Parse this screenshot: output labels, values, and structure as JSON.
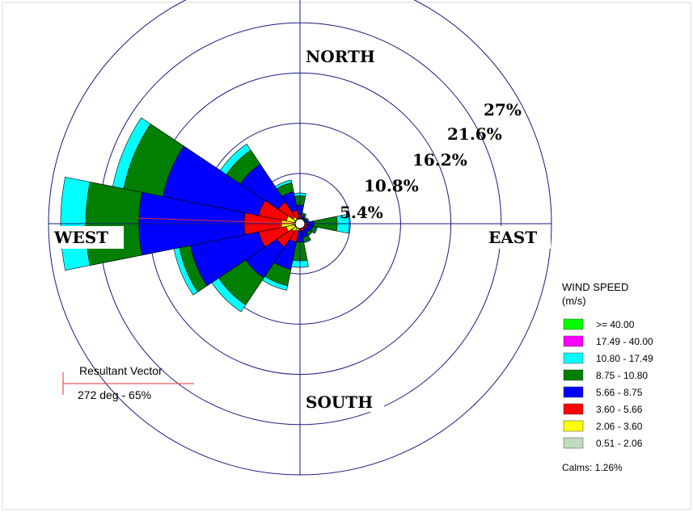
{
  "chart_data": {
    "type": "wind-rose",
    "directions": {
      "north": "NORTH",
      "south": "SOUTH",
      "east": "EAST",
      "west": "WEST"
    },
    "ring_labels": [
      "5.4%",
      "10.8%",
      "16.2%",
      "21.6%",
      "27%"
    ],
    "ring_values": [
      5.4,
      10.8,
      16.2,
      21.6,
      27
    ],
    "max_percent": 27,
    "legend": {
      "title_line1": "WIND SPEED",
      "title_line2": "(m/s)",
      "bins": [
        {
          "label": ">= 40.00",
          "color": "#00ff00"
        },
        {
          "label": "17.49 - 40.00",
          "color": "#ff00ff"
        },
        {
          "label": "10.80 - 17.49",
          "color": "#00ffff"
        },
        {
          "label": "8.75 - 10.80",
          "color": "#007f00"
        },
        {
          "label": "5.66 - 8.75",
          "color": "#0000ff"
        },
        {
          "label": "3.60 - 5.66",
          "color": "#ff0000"
        },
        {
          "label": "2.06 - 3.60",
          "color": "#ffff00"
        },
        {
          "label": "0.51 - 2.06",
          "color": "#c0dcc0"
        }
      ],
      "calms": "Calms: 1.26%"
    },
    "resultant_vector": {
      "label": "Resultant Vector",
      "value": "272 deg - 65%",
      "direction_deg": 272,
      "percent": 65
    },
    "sectors": [
      {
        "dir": 0,
        "cum": [
          0.3,
          0.6,
          1.0,
          2.0,
          3.0,
          3.3
        ]
      },
      {
        "dir": 22.5,
        "cum": [
          0.2,
          0.4,
          0.6,
          0.9,
          1.1,
          1.2
        ]
      },
      {
        "dir": 45,
        "cum": [
          0.2,
          0.3,
          0.5,
          0.7,
          0.8,
          0.9
        ]
      },
      {
        "dir": 67.5,
        "cum": [
          0.2,
          0.3,
          0.5,
          0.8,
          0.9,
          1.0
        ]
      },
      {
        "dir": 90,
        "cum": [
          0.2,
          0.4,
          0.8,
          1.5,
          4.0,
          5.3
        ]
      },
      {
        "dir": 112.5,
        "cum": [
          0.3,
          0.5,
          0.8,
          1.4,
          1.8,
          1.9
        ]
      },
      {
        "dir": 135,
        "cum": [
          0.3,
          0.5,
          0.7,
          1.2,
          1.5,
          1.6
        ]
      },
      {
        "dir": 157.5,
        "cum": [
          0.3,
          0.5,
          0.8,
          1.5,
          2.0,
          2.1
        ]
      },
      {
        "dir": 180,
        "cum": [
          0.2,
          0.4,
          0.8,
          2.0,
          4.0,
          4.7
        ]
      },
      {
        "dir": 202.5,
        "cum": [
          0.4,
          0.8,
          2.0,
          5.0,
          6.8,
          7.3
        ]
      },
      {
        "dir": 225,
        "cum": [
          0.5,
          1.0,
          3.0,
          7.0,
          10.5,
          11.4
        ]
      },
      {
        "dir": 247.5,
        "cum": [
          0.6,
          1.5,
          4.5,
          12.0,
          13.2,
          13.8
        ]
      },
      {
        "dir": 270,
        "cum": [
          0.8,
          2.0,
          6.0,
          17.3,
          23.0,
          25.7
        ]
      },
      {
        "dir": 292.5,
        "cum": [
          0.6,
          1.5,
          4.5,
          15.0,
          19.3,
          20.5
        ]
      },
      {
        "dir": 315,
        "cum": [
          0.4,
          0.9,
          2.8,
          7.7,
          9.5,
          10.3
        ]
      },
      {
        "dir": 337.5,
        "cum": [
          0.3,
          0.6,
          1.5,
          3.5,
          4.5,
          4.8
        ]
      }
    ],
    "sector_bin_colors": [
      "#c0dcc0",
      "#ffff00",
      "#ff0000",
      "#0000ff",
      "#007f00",
      "#00ffff"
    ]
  }
}
